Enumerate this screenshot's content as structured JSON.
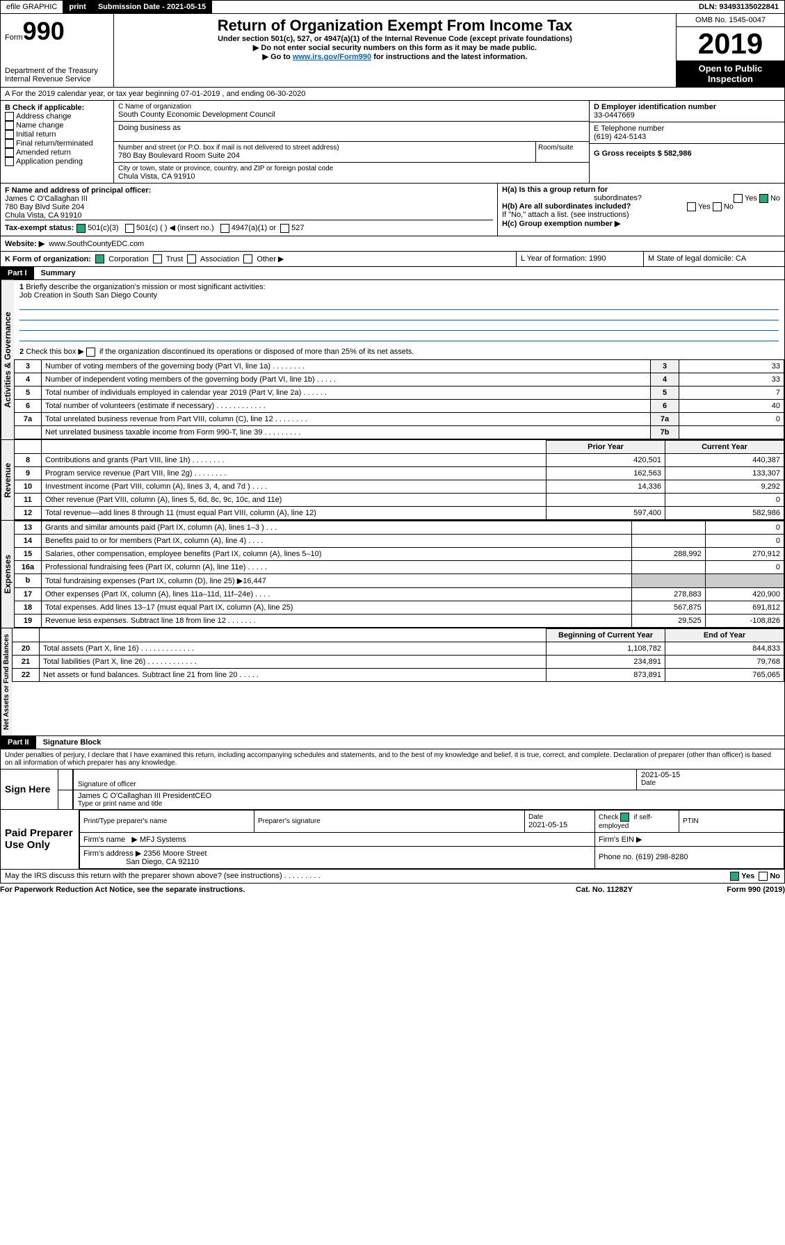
{
  "topbar": {
    "efile": "efile GRAPHIC",
    "print": "print",
    "subdate_lbl": "Submission Date - 2021-05-15",
    "dln": "DLN: 93493135022841"
  },
  "hdr": {
    "form": "Form",
    "n990": "990",
    "dept": "Department of the Treasury",
    "irs": "Internal Revenue Service",
    "title": "Return of Organization Exempt From Income Tax",
    "sub1": "Under section 501(c), 527, or 4947(a)(1) of the Internal Revenue Code (except private foundations)",
    "sub2": "▶ Do not enter social security numbers on this form as it may be made public.",
    "sub3": "▶ Go to ",
    "sub3link": "www.irs.gov/Form990",
    "sub3b": " for instructions and the latest information.",
    "omb": "OMB No. 1545-0047",
    "year": "2019",
    "open": "Open to Public",
    "insp": "Inspection"
  },
  "a": {
    "line": "A For the 2019 calendar year, or tax year beginning 07-01-2019    , and ending 06-30-2020"
  },
  "b": {
    "hdr": "B Check if applicable:",
    "i": [
      "Address change",
      "Name change",
      "Initial return",
      "Final return/terminated",
      "Amended return",
      "Application pending"
    ]
  },
  "c": {
    "lbl": "C Name of organization",
    "org": "South County Economic Development Council",
    "dba": "Doing business as",
    "addr_lbl": "Number and street (or P.O. box if mail is not delivered to street address)",
    "room": "Room/suite",
    "addr": "780 Bay Boulevard Room Suite 204",
    "city_lbl": "City or town, state or province, country, and ZIP or foreign postal code",
    "city": "Chula Vista, CA  91910"
  },
  "d": {
    "lbl": "D Employer identification number",
    "ein": "33-0447669"
  },
  "e": {
    "lbl": "E Telephone number",
    "tel": "(619) 424-5143"
  },
  "g": {
    "lbl": "G Gross receipts $ 582,986"
  },
  "f": {
    "lbl": "F  Name and address of principal officer:",
    "name": "James C O'Callaghan III",
    "addr1": "780 Bay Blvd Suite 204",
    "addr2": "Chula Vista, CA  91910"
  },
  "h": {
    "a": "H(a)  Is this a group return for",
    "sub": "subordinates?",
    "yes": "Yes",
    "no": "No",
    "b": "H(b)  Are all subordinates included?",
    "note": "If \"No,\" attach a list. (see instructions)",
    "c": "H(c)  Group exemption number ▶"
  },
  "i": {
    "lbl": "Tax-exempt status:",
    "o1": "501(c)(3)",
    "o2": "501(c) (   ) ◀ (insert no.)",
    "o3": "4947(a)(1) or",
    "o4": "527"
  },
  "j": {
    "lbl": "Website: ▶",
    "val": "www.SouthCountyEDC.com"
  },
  "k": {
    "lbl": "K Form of organization:",
    "o": [
      "Corporation",
      "Trust",
      "Association",
      "Other ▶"
    ]
  },
  "l": {
    "lbl": "L Year of formation: 1990"
  },
  "m": {
    "lbl": "M State of legal domicile: CA"
  },
  "p1": {
    "tab": "Part I",
    "title": "Summary",
    "sections": {
      "ag": "Activities & Governance",
      "rev": "Revenue",
      "exp": "Expenses",
      "na": "Net Assets or Fund Balances"
    }
  },
  "s1": {
    "l1": "Briefly describe the organization's mission or most significant activities:",
    "l1v": "Job Creation in South San Diego County",
    "l2": "Check this box ▶     if the organization discontinued its operations or disposed of more than 25% of its net assets.",
    "rows": [
      {
        "n": "3",
        "t": "Number of voting members of the governing body (Part VI, line 1a)   .   .   .   .   .   .   .   .",
        "r": "3",
        "v": "33"
      },
      {
        "n": "4",
        "t": "Number of independent voting members of the governing body (Part VI, line 1b)   .   .   .   .   .",
        "r": "4",
        "v": "33"
      },
      {
        "n": "5",
        "t": "Total number of individuals employed in calendar year 2019 (Part V, line 2a)   .   .   .   .   .   .",
        "r": "5",
        "v": "7"
      },
      {
        "n": "6",
        "t": "Total number of volunteers (estimate if necessary)   .   .   .   .   .   .   .   .   .   .   .   .",
        "r": "6",
        "v": "40"
      },
      {
        "n": "7a",
        "t": "Total unrelated business revenue from Part VIII, column (C), line 12   .   .   .   .   .   .   .   .",
        "r": "7a",
        "v": "0"
      },
      {
        "n": "",
        "t": "Net unrelated business taxable income from Form 990-T, line 39   .   .   .   .   .   .   .   .   .",
        "r": "7b",
        "v": ""
      }
    ],
    "col_prior": "Prior Year",
    "col_curr": "Current Year",
    "rev_rows": [
      {
        "n": "8",
        "t": "Contributions and grants (Part VIII, line 1h)   .   .   .   .   .   .   .   .",
        "p": "420,501",
        "c": "440,387"
      },
      {
        "n": "9",
        "t": "Program service revenue (Part VIII, line 2g)   .   .   .   .   .   .   .   .",
        "p": "162,563",
        "c": "133,307"
      },
      {
        "n": "10",
        "t": "Investment income (Part VIII, column (A), lines 3, 4, and 7d )   .   .   .   .",
        "p": "14,336",
        "c": "9,292"
      },
      {
        "n": "11",
        "t": "Other revenue (Part VIII, column (A), lines 5, 6d, 8c, 9c, 10c, and 11e)",
        "p": "",
        "c": "0"
      },
      {
        "n": "12",
        "t": "Total revenue—add lines 8 through 11 (must equal Part VIII, column (A), line 12)",
        "p": "597,400",
        "c": "582,986"
      }
    ],
    "exp_rows": [
      {
        "n": "13",
        "t": "Grants and similar amounts paid (Part IX, column (A), lines 1–3 )   .   .   .",
        "p": "",
        "c": "0"
      },
      {
        "n": "14",
        "t": "Benefits paid to or for members (Part IX, column (A), line 4)   .   .   .   .",
        "p": "",
        "c": "0"
      },
      {
        "n": "15",
        "t": "Salaries, other compensation, employee benefits (Part IX, column (A), lines 5–10)",
        "p": "288,992",
        "c": "270,912"
      },
      {
        "n": "16a",
        "t": "Professional fundraising fees (Part IX, column (A), line 11e)   .   .   .   .   .",
        "p": "",
        "c": "0"
      },
      {
        "n": "b",
        "t": "Total fundraising expenses (Part IX, column (D), line 25) ▶16,447",
        "p": "—",
        "c": "—"
      },
      {
        "n": "17",
        "t": "Other expenses (Part IX, column (A), lines 11a–11d, 11f–24e)   .   .   .   .",
        "p": "278,883",
        "c": "420,900"
      },
      {
        "n": "18",
        "t": "Total expenses. Add lines 13–17 (must equal Part IX, column (A), line 25)",
        "p": "567,875",
        "c": "691,812"
      },
      {
        "n": "19",
        "t": "Revenue less expenses. Subtract line 18 from line 12   .   .   .   .   .   .   .",
        "p": "29,525",
        "c": "-108,826"
      }
    ],
    "col_beg": "Beginning of Current Year",
    "col_end": "End of Year",
    "na_rows": [
      {
        "n": "20",
        "t": "Total assets (Part X, line 16)   .   .   .   .   .   .   .   .   .   .   .   .   .",
        "p": "1,108,782",
        "c": "844,833"
      },
      {
        "n": "21",
        "t": "Total liabilities (Part X, line 26)   .   .   .   .   .   .   .   .   .   .   .   .",
        "p": "234,891",
        "c": "79,768"
      },
      {
        "n": "22",
        "t": "Net assets or fund balances. Subtract line 21 from line 20   .   .   .   .   .",
        "p": "873,891",
        "c": "765,065"
      }
    ]
  },
  "p2": {
    "tab": "Part II",
    "title": "Signature Block",
    "decl": "Under penalties of perjury, I declare that I have examined this return, including accompanying schedules and statements, and to the best of my knowledge and belief, it is true, correct, and complete. Declaration of preparer (other than officer) is based on all information of which preparer has any knowledge."
  },
  "sign": {
    "here": "Sign Here",
    "sigoff": "Signature of officer",
    "date": "Date",
    "dval": "2021-05-15",
    "name": "James C O'Callaghan III  PresidentCEO",
    "type": "Type or print name and title"
  },
  "paid": {
    "title": "Paid Preparer Use Only",
    "h1": "Print/Type preparer's name",
    "h2": "Preparer's signature",
    "h3": "Date",
    "dval": "2021-05-15",
    "h4": "Check",
    "h4b": "if self-employed",
    "h5": "PTIN",
    "firm": "Firm's name",
    "firmv": "▶  MFJ Systems",
    "ein": "Firm's EIN ▶",
    "addr": "Firm's address ▶",
    "addrv": "2356 Moore Street",
    "city": "San Diego, CA  92110",
    "phone": "Phone no. (619) 298-8280"
  },
  "foot": {
    "q": "May the IRS discuss this return with the preparer shown above? (see instructions)   .   .   .   .   .   .   .   .   .",
    "yes": "Yes",
    "no": "No",
    "pra": "For Paperwork Reduction Act Notice, see the separate instructions.",
    "cat": "Cat. No. 11282Y",
    "form": "Form",
    "f990": "990",
    "y": "(2019)"
  }
}
